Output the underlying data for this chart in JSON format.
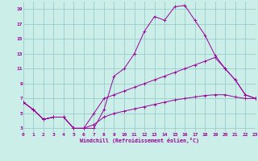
{
  "bg_color": "#cceee8",
  "grid_color": "#99cccc",
  "line_color": "#990099",
  "xlabel": "Windchill (Refroidissement éolien,°C)",
  "xlim": [
    0,
    23
  ],
  "ylim": [
    2.5,
    20.0
  ],
  "xticks": [
    0,
    1,
    2,
    3,
    4,
    5,
    6,
    7,
    8,
    9,
    10,
    11,
    12,
    13,
    14,
    15,
    16,
    17,
    18,
    19,
    20,
    21,
    22,
    23
  ],
  "yticks": [
    3,
    5,
    7,
    9,
    11,
    13,
    15,
    17,
    19
  ],
  "curve1_x": [
    0,
    1,
    2,
    3,
    4,
    5,
    6,
    7,
    8,
    9,
    10,
    11,
    12,
    13,
    14,
    15,
    16,
    17,
    18,
    19,
    20,
    21,
    22,
    23
  ],
  "curve1_y": [
    6.5,
    5.5,
    4.2,
    4.5,
    4.5,
    3.0,
    3.0,
    3.0,
    5.5,
    10.0,
    11.0,
    13.0,
    16.0,
    18.0,
    17.5,
    19.3,
    19.5,
    17.5,
    15.5,
    12.8,
    11.0,
    9.5,
    7.5,
    7.0
  ],
  "curve2_x": [
    0,
    1,
    2,
    3,
    4,
    5,
    6,
    7,
    8,
    9,
    10,
    11,
    12,
    13,
    14,
    15,
    16,
    17,
    18,
    19,
    20,
    21,
    22,
    23
  ],
  "curve2_y": [
    6.5,
    5.5,
    4.2,
    4.5,
    4.5,
    3.0,
    3.0,
    5.0,
    7.0,
    7.5,
    8.0,
    8.5,
    9.0,
    9.5,
    10.0,
    10.5,
    11.0,
    11.5,
    12.0,
    12.5,
    11.0,
    9.5,
    7.5,
    7.0
  ],
  "curve3_x": [
    0,
    1,
    2,
    3,
    4,
    5,
    6,
    7,
    8,
    9,
    10,
    11,
    12,
    13,
    14,
    15,
    16,
    17,
    18,
    19,
    20,
    21,
    22,
    23
  ],
  "curve3_y": [
    6.5,
    5.5,
    4.2,
    4.5,
    4.5,
    3.0,
    3.0,
    3.5,
    4.5,
    5.0,
    5.3,
    5.6,
    5.9,
    6.2,
    6.5,
    6.8,
    7.0,
    7.2,
    7.4,
    7.5,
    7.5,
    7.2,
    7.0,
    7.0
  ]
}
